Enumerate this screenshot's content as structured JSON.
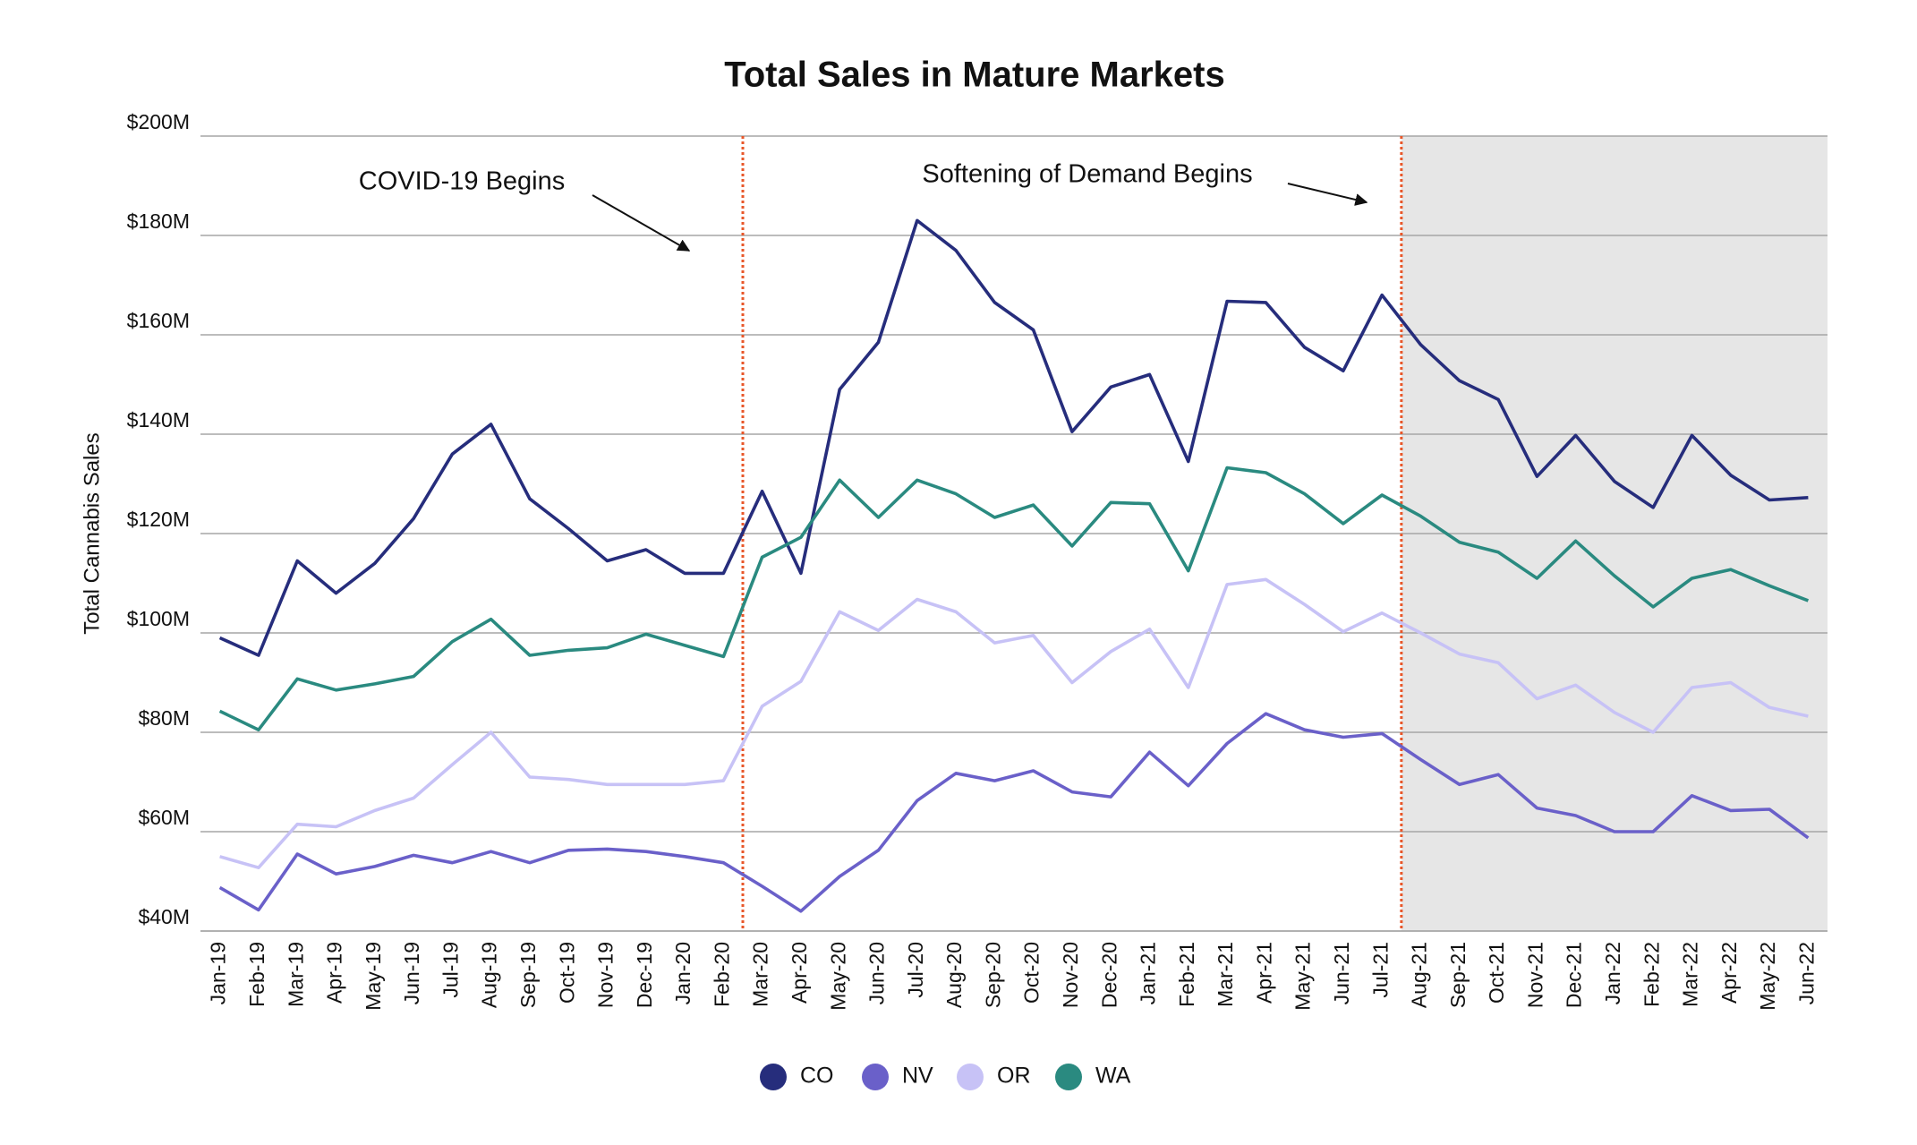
{
  "chart_data": {
    "type": "line",
    "title": "Total Sales in Mature Markets",
    "y_label": "Total Cannabis Sales",
    "categories": [
      "Jan-19",
      "Feb-19",
      "Mar-19",
      "Apr-19",
      "May-19",
      "Jun-19",
      "Jul-19",
      "Aug-19",
      "Sep-19",
      "Oct-19",
      "Nov-19",
      "Dec-19",
      "Jan-20",
      "Feb-20",
      "Mar-20",
      "Apr-20",
      "May-20",
      "Jun-20",
      "Jul-20",
      "Aug-20",
      "Sep-20",
      "Oct-20",
      "Nov-20",
      "Dec-20",
      "Jan-21",
      "Feb-21",
      "Mar-21",
      "Apr-21",
      "May-21",
      "Jun-21",
      "Jul-21",
      "Aug-21",
      "Sep-21",
      "Oct-21",
      "Nov-21",
      "Dec-21",
      "Jan-22",
      "Feb-22",
      "Mar-22",
      "Apr-22",
      "May-22",
      "Jun-22"
    ],
    "series": [
      {
        "name": "CO",
        "color": "#262d7c",
        "values": [
          99,
          95.5,
          114.5,
          108,
          114,
          123,
          136,
          142,
          127,
          121,
          114.5,
          116.75,
          112,
          112,
          128.5,
          112,
          149,
          158.5,
          183,
          177,
          166.5,
          161,
          140.5,
          149.5,
          152,
          134.5,
          166.75,
          166.5,
          157.5,
          152.75,
          168,
          158,
          150.75,
          147,
          131.5,
          139.75,
          130.5,
          125.25,
          139.75,
          131.75,
          126.75,
          127.25
        ]
      },
      {
        "name": "NV",
        "color": "#6a60c9",
        "values": [
          48.75,
          44.25,
          55.5,
          51.5,
          53,
          55.25,
          53.75,
          56,
          53.75,
          56.25,
          56.5,
          56,
          55,
          53.75,
          49,
          44,
          51,
          56.25,
          66.25,
          71.75,
          70.25,
          72.25,
          68,
          67,
          76,
          69.25,
          77.75,
          83.75,
          80.5,
          79,
          79.75,
          74.5,
          69.5,
          71.5,
          64.75,
          63.25,
          60,
          60,
          67.25,
          64.25,
          64.5,
          58.75
        ]
      },
      {
        "name": "OR",
        "color": "#c7c2f6",
        "values": [
          55,
          52.75,
          61.5,
          61,
          64.25,
          66.75,
          73.5,
          80,
          71,
          70.5,
          69.5,
          69.5,
          69.5,
          70.25,
          85.25,
          90.25,
          104.25,
          100.5,
          106.75,
          104.25,
          98,
          99.5,
          90,
          96.25,
          100.75,
          89,
          109.75,
          110.75,
          105.75,
          100.25,
          104,
          100,
          95.75,
          94,
          86.75,
          89.5,
          84,
          80,
          89,
          90,
          85,
          83.25
        ]
      },
      {
        "name": "WA",
        "color": "#2a8a80",
        "values": [
          84.25,
          80.5,
          90.75,
          88.5,
          89.75,
          91.25,
          98.25,
          102.75,
          95.5,
          96.5,
          97,
          99.75,
          97.5,
          95.25,
          115.25,
          119.25,
          130.75,
          123.25,
          130.75,
          128,
          123.25,
          125.75,
          117.5,
          126.25,
          126,
          112.5,
          133.25,
          132.25,
          128,
          122,
          127.75,
          123.5,
          118.25,
          116.25,
          111,
          118.5,
          111.5,
          105.25,
          111,
          112.75,
          109.5,
          106.5
        ]
      }
    ],
    "ylim": [
      40,
      200
    ],
    "yticks": [
      {
        "value": 40,
        "label": "$40M"
      },
      {
        "value": 60,
        "label": "$60M"
      },
      {
        "value": 80,
        "label": "$80M"
      },
      {
        "value": 100,
        "label": "$100M"
      },
      {
        "value": 120,
        "label": "$120M"
      },
      {
        "value": 140,
        "label": "$140M"
      },
      {
        "value": 160,
        "label": "$160M"
      },
      {
        "value": 180,
        "label": "$180M"
      },
      {
        "value": 200,
        "label": "$200M"
      }
    ],
    "grid": true,
    "annotations": [
      {
        "text": "COVID-19 Begins",
        "category": "Mar-20"
      },
      {
        "text": "Softening of Demand Begins",
        "category": "Aug-21"
      }
    ],
    "shaded_from": "Aug-21",
    "legend": "bottom"
  }
}
